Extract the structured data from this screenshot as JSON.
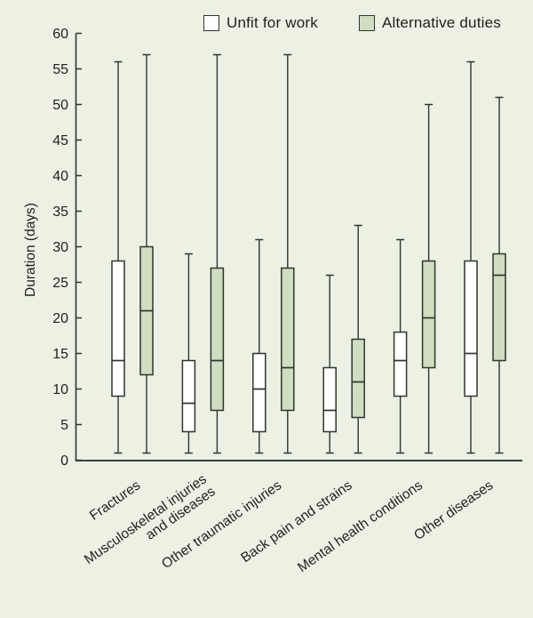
{
  "chart_data": {
    "type": "boxplot",
    "ylabel": "Duration (days)",
    "ylim": [
      0,
      60
    ],
    "ytick_step": 5,
    "yticks": [
      0,
      5,
      10,
      15,
      20,
      25,
      30,
      35,
      40,
      45,
      50,
      55,
      60
    ],
    "legend_position": "top",
    "grid": false,
    "colors": {
      "background": "#ecf1e4",
      "axis": "#2f3430",
      "box_stroke": "#2f3430",
      "text": "#1f1f1f"
    },
    "series": [
      {
        "name": "Unfit for work",
        "color": "#ffffff"
      },
      {
        "name": "Alternative duties",
        "color": "#cedebf"
      }
    ],
    "categories": [
      {
        "label_lines": [
          "Fractures"
        ],
        "boxes": [
          {
            "whisker_low": 1,
            "q1": 9,
            "median": 14,
            "q3": 28,
            "whisker_high": 56
          },
          {
            "whisker_low": 1,
            "q1": 12,
            "median": 21,
            "q3": 30,
            "whisker_high": 57
          }
        ]
      },
      {
        "label_lines": [
          "Musculoskeletal injuries",
          "and diseases"
        ],
        "boxes": [
          {
            "whisker_low": 1,
            "q1": 4,
            "median": 8,
            "q3": 14,
            "whisker_high": 29
          },
          {
            "whisker_low": 1,
            "q1": 7,
            "median": 14,
            "q3": 27,
            "whisker_high": 57
          }
        ]
      },
      {
        "label_lines": [
          "Other traumatic injuries"
        ],
        "boxes": [
          {
            "whisker_low": 1,
            "q1": 4,
            "median": 10,
            "q3": 15,
            "whisker_high": 31
          },
          {
            "whisker_low": 1,
            "q1": 7,
            "median": 13,
            "q3": 27,
            "whisker_high": 57
          }
        ]
      },
      {
        "label_lines": [
          "Back pain and strains"
        ],
        "boxes": [
          {
            "whisker_low": 1,
            "q1": 4,
            "median": 7,
            "q3": 13,
            "whisker_high": 26
          },
          {
            "whisker_low": 1,
            "q1": 6,
            "median": 11,
            "q3": 17,
            "whisker_high": 33
          }
        ]
      },
      {
        "label_lines": [
          "Mental health conditions"
        ],
        "boxes": [
          {
            "whisker_low": 1,
            "q1": 9,
            "median": 14,
            "q3": 18,
            "whisker_high": 31
          },
          {
            "whisker_low": 1,
            "q1": 13,
            "median": 20,
            "q3": 28,
            "whisker_high": 50
          }
        ]
      },
      {
        "label_lines": [
          "Other diseases"
        ],
        "boxes": [
          {
            "whisker_low": 1,
            "q1": 9,
            "median": 15,
            "q3": 28,
            "whisker_high": 56
          },
          {
            "whisker_low": 1,
            "q1": 14,
            "median": 26,
            "q3": 29,
            "whisker_high": 51
          }
        ]
      }
    ]
  }
}
